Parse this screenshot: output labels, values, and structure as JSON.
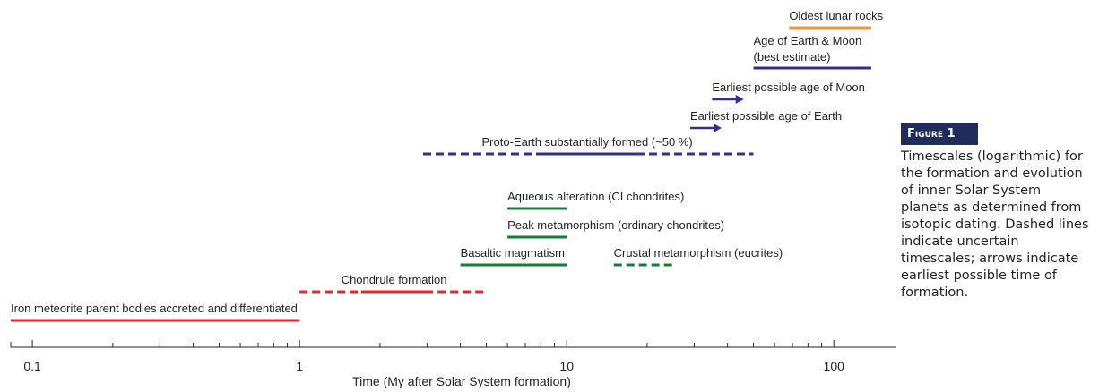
{
  "chart_data": {
    "type": "timeline",
    "x_label": "Time (My after Solar System formation)",
    "log_x": true,
    "xlim": [
      0.083,
      197
    ],
    "xticks": [
      0.1,
      1,
      10,
      100
    ],
    "xminor": [
      0.2,
      0.3,
      0.4,
      0.5,
      0.6,
      0.7,
      0.8,
      0.9,
      2,
      3,
      4,
      5,
      6,
      7,
      8,
      9,
      20,
      30,
      40,
      50,
      60,
      70,
      80,
      90
    ],
    "figure_label": "Figure 1",
    "caption": "Timescales (logarithmic) for the formation and evolution of inner Solar System planets as determined from isotopic dating. Dashed lines indicate uncertain timescales; arrows indicate earliest possible time of formation.",
    "items": [
      {
        "name": "Oldest lunar rocks",
        "color": "#f39a2b",
        "segments": [
          {
            "start": 68,
            "end": 138,
            "style": "solid"
          }
        ]
      },
      {
        "name": "Age of Earth & Moon",
        "note": "(best estimate)",
        "color": "#2e3192",
        "segments": [
          {
            "start": 50,
            "end": 138,
            "style": "solid"
          }
        ]
      },
      {
        "name": "Earliest possible age of Moon",
        "color": "#2e3192",
        "segments": [
          {
            "start": 35,
            "end": 46,
            "style": "arrow"
          }
        ]
      },
      {
        "name": "Earliest possible age of Earth",
        "color": "#2e3192",
        "segments": [
          {
            "start": 29,
            "end": 38,
            "style": "arrow"
          }
        ]
      },
      {
        "name": "Proto-Earth substantially formed (~50 %)",
        "color": "#2e3192",
        "segments": [
          {
            "start": 2.9,
            "end": 50,
            "style": "dashed"
          },
          {
            "start": 7.7,
            "end": 18.5,
            "style": "solid"
          }
        ]
      },
      {
        "name": "Aqueous alteration (CI chondrites)",
        "color": "#1a7a3a",
        "segments": [
          {
            "start": 6,
            "end": 10,
            "style": "solid"
          }
        ]
      },
      {
        "name": "Peak metamorphism (ordinary chondrites)",
        "color": "#1a7a3a",
        "segments": [
          {
            "start": 6,
            "end": 10,
            "style": "solid"
          }
        ]
      },
      {
        "name": "Basaltic magmatism",
        "color": "#1a7a3a",
        "segments": [
          {
            "start": 4,
            "end": 10,
            "style": "solid"
          }
        ]
      },
      {
        "name": "Crustal metamorphism (eucrites)",
        "color": "#1a7a3a",
        "segments": [
          {
            "start": 15,
            "end": 25,
            "style": "dashed"
          }
        ]
      },
      {
        "name": "Chondrule formation",
        "color": "#e8262c",
        "segments": [
          {
            "start": 1,
            "end": 5,
            "style": "dashed"
          },
          {
            "start": 1.7,
            "end": 3,
            "style": "solid"
          }
        ]
      },
      {
        "name": "Iron meteorite parent bodies accreted and differentiated",
        "color": "#e8262c",
        "segments": [
          {
            "start": 0.083,
            "end": 1,
            "style": "solid"
          }
        ]
      }
    ]
  }
}
